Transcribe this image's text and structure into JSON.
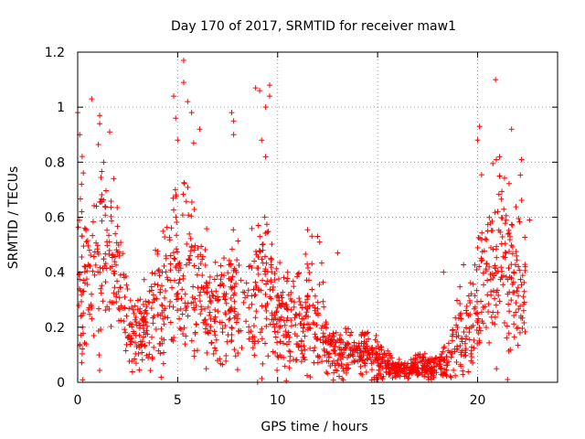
{
  "chart_data": {
    "type": "scatter",
    "title": "Day 170 of 2017, SRMTID for receiver maw1",
    "xlabel": "GPS time / hours",
    "ylabel": "SRMTID / TECUs",
    "xlim": [
      0,
      24
    ],
    "ylim": [
      0,
      1.2
    ],
    "x_ticks": [
      0,
      5,
      10,
      15,
      20
    ],
    "x_tick_labels": [
      "0",
      "5",
      "10",
      "15",
      "20"
    ],
    "y_ticks": [
      0,
      0.2,
      0.4,
      0.6,
      0.8,
      1.0,
      1.2
    ],
    "y_tick_labels": [
      "0",
      "0.2",
      "0.4",
      "0.6",
      "0.8",
      "1",
      "1.2"
    ],
    "grid": true,
    "marker": "+",
    "color": "#ff0000",
    "envelope": {
      "description": "approximate distribution of SRMTID samples by hour (data units)",
      "x": [
        0.0,
        0.5,
        1.0,
        1.5,
        2.0,
        2.5,
        3.0,
        3.5,
        4.0,
        4.5,
        5.0,
        5.5,
        6.0,
        6.5,
        7.0,
        7.5,
        8.0,
        8.5,
        9.0,
        9.5,
        10.0,
        10.5,
        11.0,
        11.5,
        12.0,
        12.5,
        13.0,
        13.5,
        14.0,
        14.5,
        15.0,
        15.5,
        16.0,
        16.5,
        17.0,
        17.5,
        18.0,
        18.5,
        19.0,
        19.5,
        20.0,
        20.5,
        21.0,
        21.5,
        22.0,
        22.4
      ],
      "center": [
        0.45,
        0.35,
        0.4,
        0.5,
        0.42,
        0.2,
        0.18,
        0.22,
        0.28,
        0.35,
        0.42,
        0.48,
        0.32,
        0.25,
        0.24,
        0.28,
        0.3,
        0.3,
        0.32,
        0.35,
        0.22,
        0.2,
        0.22,
        0.24,
        0.26,
        0.12,
        0.1,
        0.12,
        0.1,
        0.12,
        0.08,
        0.06,
        0.05,
        0.05,
        0.06,
        0.06,
        0.06,
        0.08,
        0.18,
        0.2,
        0.32,
        0.42,
        0.42,
        0.4,
        0.38,
        0.35
      ],
      "spread": [
        0.2,
        0.15,
        0.16,
        0.12,
        0.12,
        0.07,
        0.07,
        0.08,
        0.1,
        0.12,
        0.15,
        0.15,
        0.13,
        0.1,
        0.09,
        0.1,
        0.11,
        0.11,
        0.12,
        0.12,
        0.1,
        0.09,
        0.1,
        0.12,
        0.11,
        0.05,
        0.04,
        0.05,
        0.04,
        0.05,
        0.04,
        0.025,
        0.02,
        0.02,
        0.025,
        0.025,
        0.025,
        0.035,
        0.08,
        0.09,
        0.12,
        0.15,
        0.16,
        0.15,
        0.14,
        0.12
      ]
    },
    "points_per_hour": 75,
    "notable_points": [
      {
        "x": 0.0,
        "y": 0.98
      },
      {
        "x": 0.1,
        "y": 0.9
      },
      {
        "x": 0.7,
        "y": 1.03
      },
      {
        "x": 1.1,
        "y": 0.97
      },
      {
        "x": 1.1,
        "y": 0.94
      },
      {
        "x": 1.3,
        "y": 0.8
      },
      {
        "x": 1.6,
        "y": 0.91
      },
      {
        "x": 1.8,
        "y": 0.74
      },
      {
        "x": 4.8,
        "y": 1.04
      },
      {
        "x": 4.9,
        "y": 0.96
      },
      {
        "x": 5.0,
        "y": 0.88
      },
      {
        "x": 5.3,
        "y": 1.17
      },
      {
        "x": 5.3,
        "y": 1.09
      },
      {
        "x": 5.5,
        "y": 1.02
      },
      {
        "x": 5.7,
        "y": 0.98
      },
      {
        "x": 5.8,
        "y": 0.87
      },
      {
        "x": 6.1,
        "y": 0.92
      },
      {
        "x": 7.7,
        "y": 0.98
      },
      {
        "x": 7.8,
        "y": 0.95
      },
      {
        "x": 7.8,
        "y": 0.9
      },
      {
        "x": 8.9,
        "y": 1.07
      },
      {
        "x": 9.1,
        "y": 1.06
      },
      {
        "x": 9.6,
        "y": 1.08
      },
      {
        "x": 9.6,
        "y": 1.04
      },
      {
        "x": 9.4,
        "y": 1.0
      },
      {
        "x": 9.2,
        "y": 0.88
      },
      {
        "x": 9.4,
        "y": 0.82
      },
      {
        "x": 20.1,
        "y": 0.93
      },
      {
        "x": 20.0,
        "y": 0.88
      },
      {
        "x": 20.9,
        "y": 1.1
      },
      {
        "x": 21.1,
        "y": 0.82
      },
      {
        "x": 21.1,
        "y": 0.75
      },
      {
        "x": 21.7,
        "y": 0.92
      },
      {
        "x": 22.2,
        "y": 0.81
      },
      {
        "x": 13.0,
        "y": 0.47
      },
      {
        "x": 12.0,
        "y": 0.53
      },
      {
        "x": 12.1,
        "y": 0.51
      },
      {
        "x": 18.3,
        "y": 0.4
      },
      {
        "x": 9.0,
        "y": 0.0
      },
      {
        "x": 21.5,
        "y": 0.01
      },
      {
        "x": 0.2,
        "y": 0.62
      },
      {
        "x": 22.6,
        "y": 0.59
      }
    ]
  }
}
